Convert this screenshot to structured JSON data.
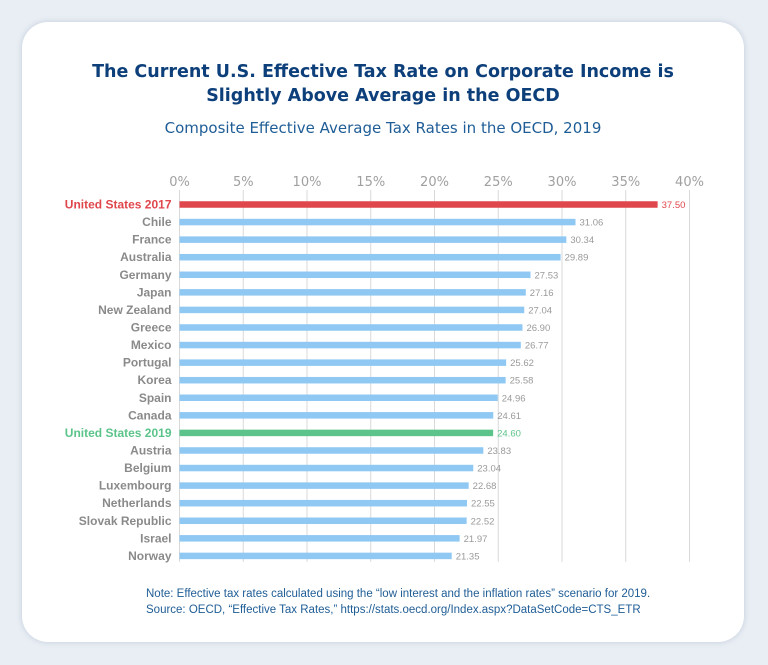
{
  "chart_data": {
    "type": "bar",
    "orientation": "horizontal",
    "title": "The Current U.S. Effective Tax Rate on Corporate Income is Slightly Above Average in the OECD",
    "title_lines": [
      "The Current U.S. Effective Tax Rate on Corporate Income is",
      "Slightly Above Average in the OECD"
    ],
    "subtitle": "Composite Effective Average Tax Rates in the OECD, 2019",
    "x_ticks": [
      "0%",
      "5%",
      "10%",
      "15%",
      "20%",
      "25%",
      "30%",
      "35%",
      "40%"
    ],
    "xlim": [
      0,
      40
    ],
    "grid": true,
    "categories": [
      "United States 2017",
      "Chile",
      "France",
      "Australia",
      "Germany",
      "Japan",
      "New Zealand",
      "Greece",
      "Mexico",
      "Portugal",
      "Korea",
      "Spain",
      "Canada",
      "United States 2019",
      "Austria",
      "Belgium",
      "Luxembourg",
      "Netherlands",
      "Slovak Republic",
      "Israel",
      "Norway"
    ],
    "values": [
      37.5,
      31.06,
      30.34,
      29.89,
      27.53,
      27.16,
      27.04,
      26.9,
      26.77,
      25.62,
      25.58,
      24.96,
      24.61,
      24.6,
      23.83,
      23.04,
      22.68,
      22.55,
      22.52,
      21.97,
      21.35
    ],
    "value_labels": [
      "37.50",
      "31.06",
      "30.34",
      "29.89",
      "27.53",
      "27.16",
      "27.04",
      "26.90",
      "26.77",
      "25.62",
      "25.58",
      "24.96",
      "24.61",
      "24.60",
      "23.83",
      "23.04",
      "22.68",
      "22.55",
      "22.52",
      "21.97",
      "21.35"
    ],
    "colors": {
      "default_bar": "#8fc8f3",
      "default_label": "#8a8a8a",
      "value_label": "#9a9a9a",
      "highlight_2017": "#e0474c",
      "highlight_2019": "#5cc48a",
      "grid": "#d9d9d9",
      "tick": "#a0a0a0"
    },
    "highlights": {
      "United States 2017": "highlight_2017",
      "United States 2019": "highlight_2019"
    }
  },
  "notes": {
    "line1": "Note: Effective tax rates calculated using the “low interest and the inflation rates” scenario for 2019.",
    "line2": "Source: OECD, “Effective Tax Rates,” https://stats.oecd.org/Index.aspx?DataSetCode=CTS_ETR"
  }
}
